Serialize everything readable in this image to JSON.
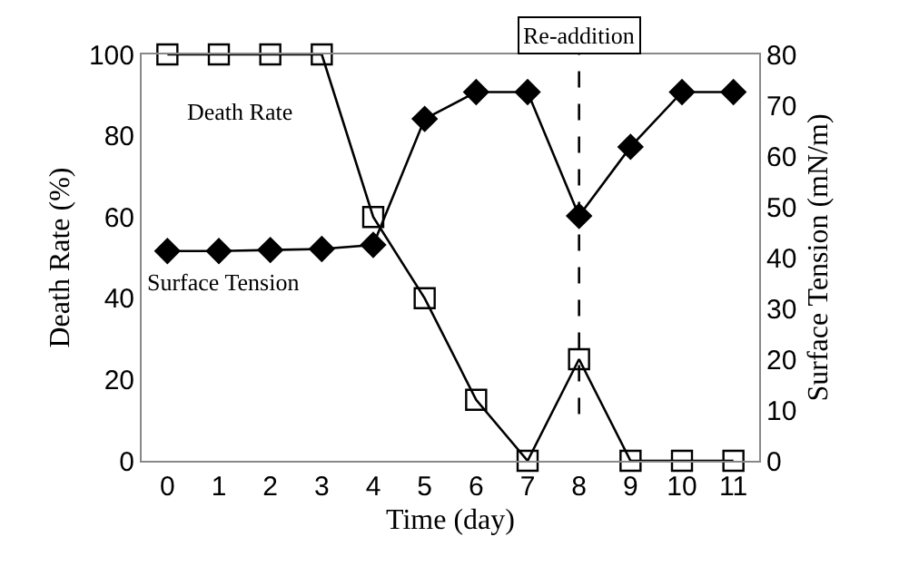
{
  "chart_data": {
    "type": "line",
    "xlabel": "Time (day)",
    "ylabel": "Death Rate (%)",
    "y2label": "Surface Tension (mN/m)",
    "x": [
      0,
      1,
      2,
      3,
      4,
      5,
      6,
      7,
      8,
      9,
      10,
      11
    ],
    "series": [
      {
        "name": "Death Rate",
        "color": "#000000",
        "marker": "square",
        "values": [
          100,
          100,
          100,
          100,
          60,
          40,
          15,
          0,
          25,
          0,
          0,
          0
        ]
      },
      {
        "name": "Surface Tension",
        "color": "#000000",
        "marker": "diamond",
        "axis": "y2",
        "values": [
          41.3,
          41.3,
          41.5,
          41.7,
          42.5,
          67.3,
          72.6,
          72.6,
          48.2,
          61.8,
          72.6,
          72.6
        ]
      }
    ],
    "xlim": [
      -0.5,
      11.5
    ],
    "xticks": [
      0,
      1,
      2,
      3,
      4,
      5,
      6,
      7,
      8,
      9,
      10,
      11
    ],
    "ylim": [
      0,
      100
    ],
    "yticks": [
      0,
      20,
      40,
      60,
      80,
      100
    ],
    "y2lim": [
      0,
      80
    ],
    "y2ticks": [
      0,
      10,
      20,
      30,
      40,
      50,
      60,
      70,
      80
    ],
    "ref_lines": [
      {
        "axis": "x",
        "value": 8,
        "label": "Re-addition",
        "line_style": "dashed"
      }
    ],
    "legend": false
  }
}
